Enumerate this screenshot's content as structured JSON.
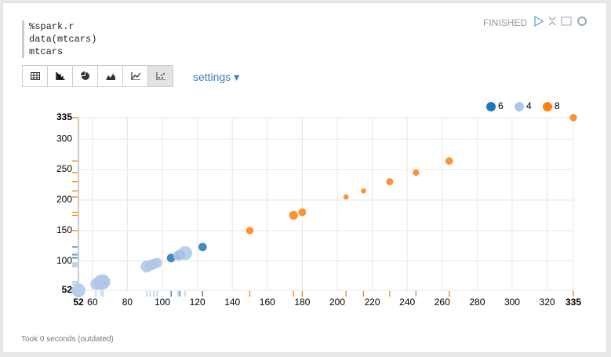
{
  "paragraph": {
    "code": [
      "%spark.r",
      "data(mtcars)",
      "mtcars"
    ],
    "status": "FINISHED",
    "settings_label": "settings",
    "footer": "Took 0 seconds (outdated)"
  },
  "chart_data": {
    "type": "scatter",
    "xlim": [
      52,
      335
    ],
    "ylim": [
      52,
      335
    ],
    "xticks": [
      52,
      60,
      80,
      100,
      120,
      140,
      160,
      180,
      200,
      220,
      240,
      260,
      280,
      300,
      320,
      335
    ],
    "yticks": [
      52,
      100,
      150,
      200,
      250,
      300,
      335
    ],
    "grid": true,
    "legend": "top-right",
    "series": [
      {
        "name": "6",
        "color": "#1f77b4",
        "x": [
          105,
          110,
          123
        ],
        "values": [
          105,
          110,
          123
        ],
        "sizes": [
          18.1,
          21,
          17.8
        ]
      },
      {
        "name": "4",
        "color": "#aec7e8",
        "x": [
          52,
          62,
          65,
          66,
          91,
          93,
          95,
          97,
          109,
          113
        ],
        "values": [
          52,
          62,
          65,
          66,
          91,
          93,
          95,
          97,
          109,
          113
        ],
        "sizes": [
          30.4,
          24.4,
          33.9,
          32.4,
          26,
          22.8,
          22.8,
          21.5,
          21.4,
          30.4
        ]
      },
      {
        "name": "8",
        "color": "#ff7f0e",
        "x": [
          150,
          175,
          180,
          205,
          215,
          230,
          245,
          264,
          335
        ],
        "values": [
          150,
          175,
          180,
          205,
          215,
          230,
          245,
          264,
          335
        ],
        "sizes": [
          15.5,
          18.7,
          16.4,
          10.4,
          10.4,
          14.7,
          13.3,
          15.8,
          15
        ]
      }
    ]
  }
}
